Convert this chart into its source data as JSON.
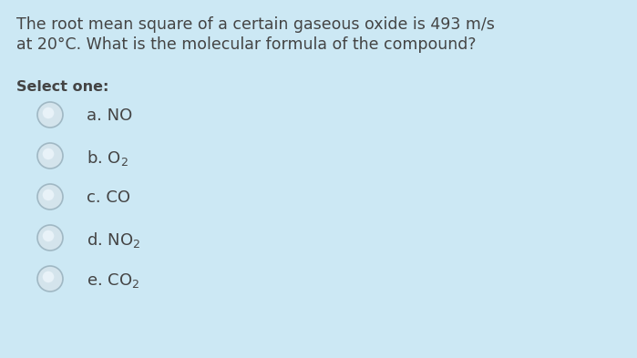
{
  "background_color": "#cce8f4",
  "question_line1": "The root mean square of a certain gaseous oxide is 493 m/s",
  "question_line2": "at 20°C. What is the molecular formula of the compound?",
  "select_label": "Select one:",
  "options": [
    {
      "base": "a. NO",
      "subscript": null
    },
    {
      "base": "b. O",
      "subscript": "2"
    },
    {
      "base": "c. CO",
      "subscript": null
    },
    {
      "base": "d. NO",
      "subscript": "2"
    },
    {
      "base": "e. CO",
      "subscript": "2"
    }
  ],
  "text_color": "#444444",
  "radio_outer_color": "#c8d8e0",
  "radio_edge_color": "#a8bec8",
  "question_fontsize": 12.5,
  "select_fontsize": 11.5,
  "option_fontsize": 13,
  "fig_width": 6.99,
  "fig_height": 3.93,
  "dpi": 100
}
